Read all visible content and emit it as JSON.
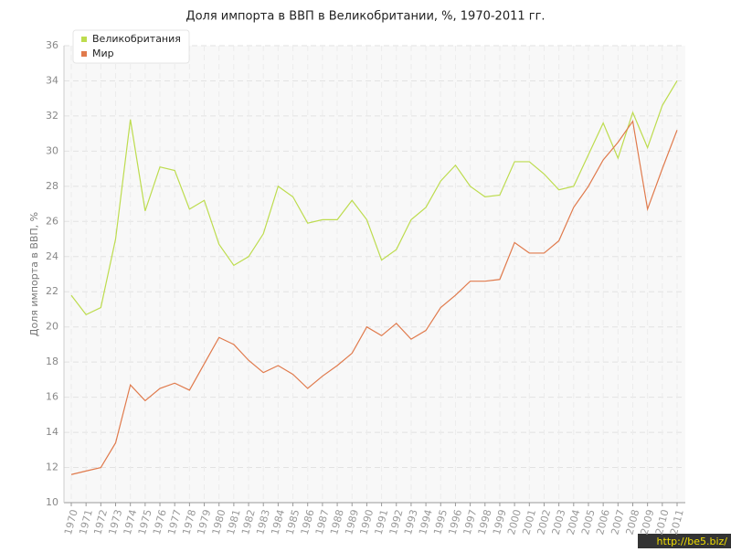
{
  "chart_data": {
    "type": "line",
    "title": "Доля импорта в ВВП в Великобритании, %, 1970-2011 гг.",
    "y_label": "Доля импорта в ВВП, %",
    "watermark": "http://be5.biz/",
    "categories": [
      "1970",
      "1971",
      "1972",
      "1973",
      "1974",
      "1975",
      "1976",
      "1977",
      "1978",
      "1979",
      "1980",
      "1981",
      "1982",
      "1983",
      "1984",
      "1985",
      "1986",
      "1987",
      "1988",
      "1989",
      "1990",
      "1991",
      "1992",
      "1993",
      "1994",
      "1995",
      "1996",
      "1997",
      "1998",
      "1999",
      "2000",
      "2001",
      "2002",
      "2003",
      "2004",
      "2005",
      "2006",
      "2007",
      "2008",
      "2009",
      "2010",
      "2011"
    ],
    "series": [
      {
        "name": "Великобритания",
        "color": "#bddc4e",
        "values": [
          21.8,
          20.7,
          21.1,
          25.0,
          31.8,
          26.6,
          29.1,
          28.9,
          26.7,
          27.2,
          24.7,
          23.5,
          24.0,
          25.3,
          28.0,
          27.4,
          25.9,
          26.1,
          26.1,
          27.2,
          26.1,
          23.8,
          24.4,
          26.1,
          26.8,
          28.3,
          29.2,
          28.0,
          27.4,
          27.5,
          29.4,
          29.4,
          28.7,
          27.8,
          28.0,
          29.8,
          31.6,
          29.6,
          32.2,
          30.2,
          32.6,
          34.0
        ]
      },
      {
        "name": "Мир",
        "color": "#e07a4c",
        "values": [
          11.6,
          11.8,
          12.0,
          13.4,
          16.7,
          15.8,
          16.5,
          16.8,
          16.4,
          17.9,
          19.4,
          19.0,
          18.1,
          17.4,
          17.8,
          17.3,
          16.5,
          17.2,
          17.8,
          18.5,
          20.0,
          19.5,
          20.2,
          19.3,
          19.8,
          21.1,
          21.8,
          22.6,
          22.6,
          22.7,
          24.8,
          24.2,
          24.2,
          24.9,
          26.8,
          28.0,
          29.5,
          30.5,
          31.7,
          26.7,
          29.0,
          31.2
        ]
      }
    ],
    "ylim": [
      10,
      36
    ],
    "yticks": [
      10,
      12,
      14,
      16,
      18,
      20,
      22,
      24,
      26,
      28,
      30,
      32,
      34,
      36
    ],
    "grid": true,
    "legend": "top-left"
  }
}
